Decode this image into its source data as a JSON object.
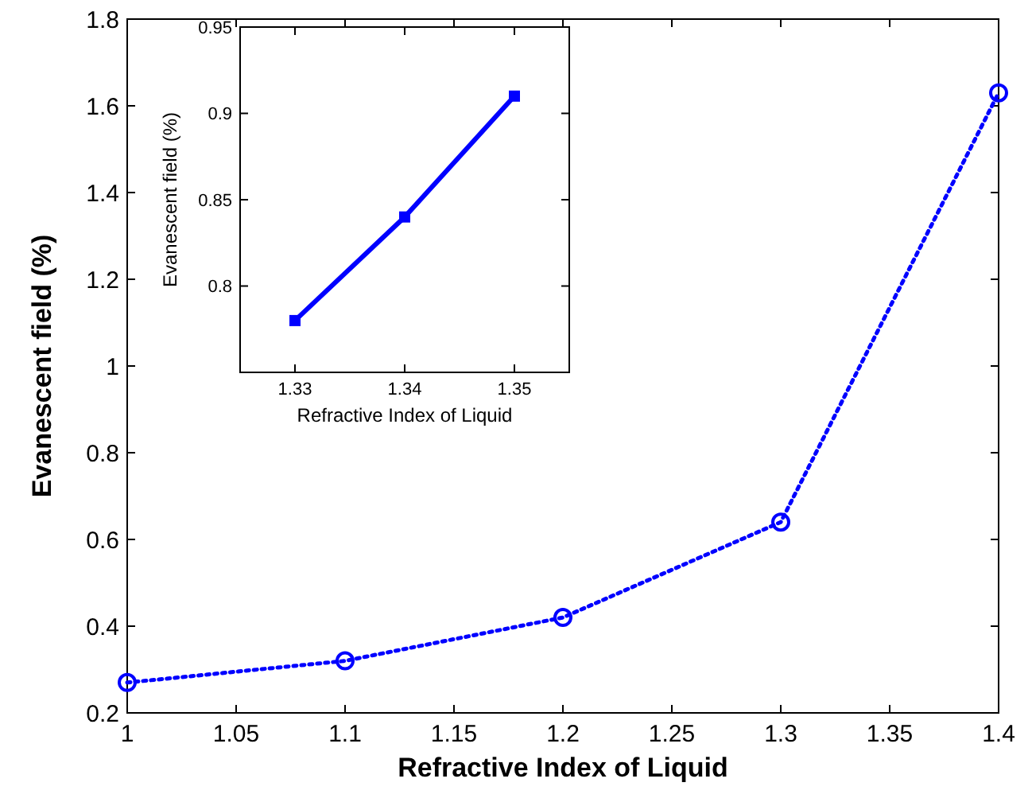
{
  "chart_data": [
    {
      "type": "line",
      "xlabel": "Refractive Index of Liquid",
      "ylabel": "Evanescent field (%)",
      "x": [
        1,
        1.1,
        1.2,
        1.3,
        1.4
      ],
      "series": [
        {
          "color": "#0000ff",
          "values": [
            0.27,
            0.32,
            0.42,
            0.64,
            1.63
          ]
        }
      ],
      "xlim": [
        1,
        1.4
      ],
      "xticks": [
        1,
        1.05,
        1.1,
        1.15,
        1.2,
        1.25,
        1.3,
        1.35,
        1.4
      ],
      "ylim": [
        0.2,
        1.8
      ],
      "yticks": [
        0.2,
        0.4,
        0.6,
        0.8,
        1,
        1.2,
        1.4,
        1.6,
        1.8
      ],
      "marker": "circle",
      "line_style": "dotted"
    },
    {
      "type": "line",
      "xlabel": "Refractive Index of Liquid",
      "ylabel": "Evanescent field (%)",
      "x": [
        1.33,
        1.34,
        1.35
      ],
      "series": [
        {
          "color": "#0000ff",
          "values": [
            0.78,
            0.84,
            0.91
          ]
        }
      ],
      "xlim": [
        1.325,
        1.355
      ],
      "xticks": [
        1.33,
        1.34,
        1.35
      ],
      "ylim": [
        0.75,
        0.95
      ],
      "yticks": [
        0.8,
        0.85,
        0.9,
        0.95
      ],
      "marker": "square",
      "line_style": "solid"
    }
  ]
}
